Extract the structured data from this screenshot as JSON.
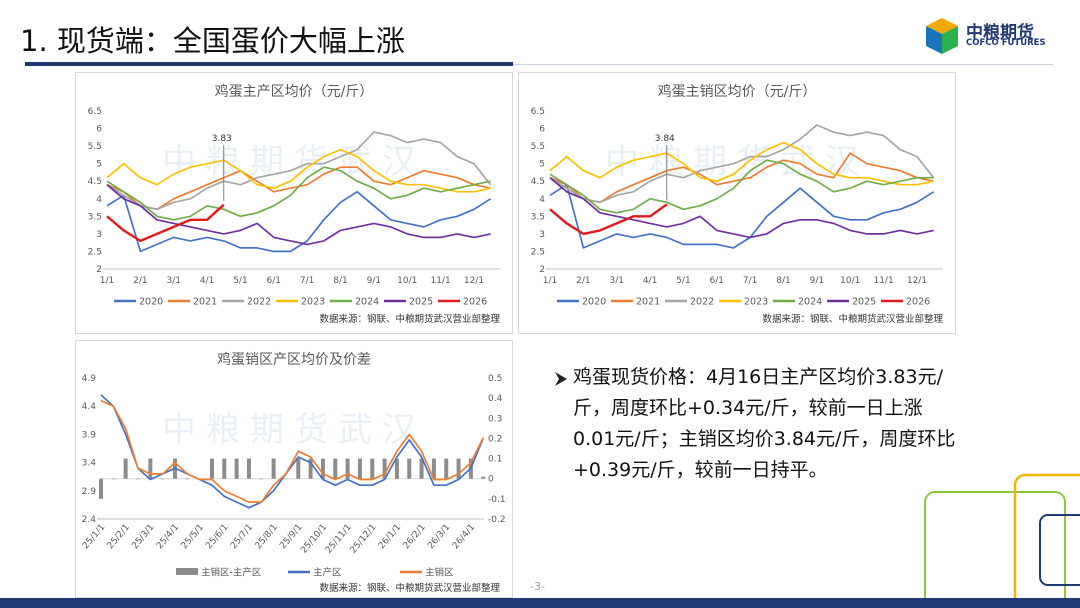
{
  "header": {
    "title": "1. 现货端：全国蛋价大幅上涨",
    "logo_cn": "中粮期货",
    "logo_en": "COFCO FUTURES"
  },
  "watermark": "中粮期货武汉",
  "body_text": "鸡蛋现货价格：4月16日主产区均价3.83元/斤，周度环比+0.34元/斤，较前一日上涨0.01元/斤；主销区均价3.84元/斤，周度环比+0.39元/斤，较前一日持平。",
  "page_number": "-3-",
  "chart_data": [
    {
      "type": "line",
      "title": "鸡蛋主产区均价（元/斤）",
      "source": "数据来源：钢联、中粮期货武汉营业部整理",
      "annotation": "3.83",
      "grid": false,
      "legend": "bottom",
      "categories": [
        "1/1",
        null,
        "2/1",
        null,
        "3/1",
        null,
        "4/1",
        null,
        "5/1",
        null,
        "6/1",
        null,
        "7/1",
        null,
        "8/1",
        null,
        "9/1",
        null,
        "10/1",
        null,
        "11/1",
        null,
        "12/1",
        null
      ],
      "ylim": [
        2,
        6.5
      ],
      "yticks": [
        2,
        2.5,
        3,
        3.5,
        4,
        4.5,
        5,
        5.5,
        6,
        6.5
      ],
      "series": [
        {
          "name": "2020",
          "color": "#4472c4",
          "values": [
            3.8,
            4.1,
            2.5,
            2.7,
            2.9,
            2.8,
            2.9,
            2.8,
            2.6,
            2.6,
            2.5,
            2.5,
            2.8,
            3.4,
            3.9,
            4.2,
            3.8,
            3.4,
            3.3,
            3.2,
            3.4,
            3.5,
            3.7,
            4.0
          ]
        },
        {
          "name": "2021",
          "color": "#ed7d31",
          "values": [
            4.4,
            4.2,
            3.8,
            3.7,
            4.0,
            4.2,
            4.4,
            4.6,
            4.8,
            4.5,
            4.2,
            4.3,
            4.4,
            4.7,
            4.9,
            4.9,
            4.5,
            4.4,
            4.6,
            4.8,
            4.7,
            4.6,
            4.4,
            4.3
          ]
        },
        {
          "name": "2022",
          "color": "#a5a5a5",
          "values": [
            4.4,
            4.1,
            3.8,
            3.7,
            3.9,
            4.0,
            4.3,
            4.5,
            4.4,
            4.6,
            4.7,
            4.8,
            5.0,
            5.0,
            5.2,
            5.4,
            5.9,
            5.8,
            5.6,
            5.7,
            5.6,
            5.2,
            5.0,
            4.4
          ]
        },
        {
          "name": "2023",
          "color": "#ffc000",
          "values": [
            4.6,
            5.0,
            4.6,
            4.4,
            4.7,
            4.9,
            5.0,
            5.1,
            4.8,
            4.4,
            4.3,
            4.5,
            4.9,
            5.2,
            5.4,
            5.2,
            4.8,
            4.5,
            4.4,
            4.4,
            4.3,
            4.2,
            4.2,
            4.3
          ]
        },
        {
          "name": "2024",
          "color": "#70ad47",
          "values": [
            4.5,
            4.2,
            3.9,
            3.5,
            3.4,
            3.5,
            3.8,
            3.7,
            3.5,
            3.6,
            3.8,
            4.1,
            4.6,
            4.9,
            4.8,
            4.5,
            4.3,
            4.0,
            4.1,
            4.3,
            4.2,
            4.3,
            4.4,
            4.5
          ]
        },
        {
          "name": "2025",
          "color": "#7030a0",
          "values": [
            4.4,
            4.0,
            3.8,
            3.4,
            3.3,
            3.2,
            3.1,
            3.0,
            3.1,
            3.3,
            2.9,
            2.8,
            2.7,
            2.8,
            3.1,
            3.2,
            3.3,
            3.2,
            3.0,
            2.9,
            2.9,
            3.0,
            2.9,
            3.0
          ]
        },
        {
          "name": "2026",
          "color": "#e31a1c",
          "values": [
            3.5,
            3.1,
            2.8,
            3.0,
            3.2,
            3.4,
            3.4,
            3.83,
            null,
            null,
            null,
            null,
            null,
            null,
            null,
            null,
            null,
            null,
            null,
            null,
            null,
            null,
            null,
            null
          ]
        }
      ]
    },
    {
      "type": "line",
      "title": "鸡蛋主销区均价（元/斤）",
      "source": "数据来源：钢联、中粮期货武汉营业部整理",
      "annotation": "3.84",
      "grid": false,
      "legend": "bottom",
      "categories": [
        "1/1",
        null,
        "2/1",
        null,
        "3/1",
        null,
        "4/1",
        null,
        "5/1",
        null,
        "6/1",
        null,
        "7/1",
        null,
        "8/1",
        null,
        "9/1",
        null,
        "10/1",
        null,
        "11/1",
        null,
        "12/1",
        null
      ],
      "ylim": [
        2,
        6.5
      ],
      "yticks": [
        2,
        2.5,
        3,
        3.5,
        4,
        4.5,
        5,
        5.5,
        6,
        6.5
      ],
      "series": [
        {
          "name": "2020",
          "color": "#4472c4",
          "values": [
            4.1,
            4.4,
            2.6,
            2.8,
            3.0,
            2.9,
            3.0,
            2.9,
            2.7,
            2.7,
            2.7,
            2.6,
            2.9,
            3.5,
            3.9,
            4.3,
            3.9,
            3.5,
            3.4,
            3.4,
            3.6,
            3.7,
            3.9,
            4.2
          ]
        },
        {
          "name": "2021",
          "color": "#ed7d31",
          "values": [
            4.6,
            4.4,
            4.0,
            3.9,
            4.2,
            4.4,
            4.6,
            4.8,
            4.9,
            4.7,
            4.4,
            4.5,
            4.6,
            4.9,
            5.1,
            5.0,
            4.7,
            4.6,
            5.3,
            5.0,
            4.9,
            4.8,
            4.6,
            4.5
          ]
        },
        {
          "name": "2022",
          "color": "#a5a5a5",
          "values": [
            4.6,
            4.3,
            4.0,
            3.9,
            4.1,
            4.2,
            4.5,
            4.7,
            4.6,
            4.8,
            4.9,
            5.0,
            5.2,
            5.2,
            5.4,
            5.7,
            6.1,
            5.9,
            5.8,
            5.9,
            5.8,
            5.4,
            5.2,
            4.6
          ]
        },
        {
          "name": "2023",
          "color": "#ffc000",
          "values": [
            4.8,
            5.2,
            4.8,
            4.6,
            4.9,
            5.1,
            5.2,
            5.3,
            5.0,
            4.6,
            4.5,
            4.7,
            5.1,
            5.4,
            5.6,
            5.4,
            5.0,
            4.7,
            4.6,
            4.6,
            4.5,
            4.4,
            4.4,
            4.5
          ]
        },
        {
          "name": "2024",
          "color": "#70ad47",
          "values": [
            4.7,
            4.4,
            4.1,
            3.7,
            3.6,
            3.7,
            4.0,
            3.9,
            3.7,
            3.8,
            4.0,
            4.3,
            4.8,
            5.1,
            5.0,
            4.7,
            4.5,
            4.2,
            4.3,
            4.5,
            4.4,
            4.5,
            4.6,
            4.6
          ]
        },
        {
          "name": "2025",
          "color": "#7030a0",
          "values": [
            4.6,
            4.2,
            4.0,
            3.6,
            3.5,
            3.4,
            3.3,
            3.2,
            3.3,
            3.5,
            3.1,
            3.0,
            2.9,
            3.0,
            3.3,
            3.4,
            3.4,
            3.3,
            3.1,
            3.0,
            3.0,
            3.1,
            3.0,
            3.1
          ]
        },
        {
          "name": "2026",
          "color": "#e31a1c",
          "values": [
            3.7,
            3.3,
            3.0,
            3.1,
            3.3,
            3.5,
            3.5,
            3.84,
            null,
            null,
            null,
            null,
            null,
            null,
            null,
            null,
            null,
            null,
            null,
            null,
            null,
            null,
            null,
            null
          ]
        }
      ]
    },
    {
      "type": "bar-line",
      "title": "鸡蛋销区产区均价及价差",
      "source": "数据来源：钢联、中粮期货武汉营业部整理",
      "grid": false,
      "legend": "bottom",
      "categories": [
        "25/1/1",
        null,
        "25/2/1",
        null,
        "25/3/1",
        null,
        "25/4/1",
        null,
        "25/5/1",
        null,
        "25/6/1",
        null,
        "25/7/1",
        null,
        "25/8/1",
        null,
        "25/9/1",
        null,
        "25/10/1",
        null,
        "25/11/1",
        null,
        "25/12/1",
        null,
        "26/1/1",
        null,
        "26/2/1",
        null,
        "26/3/1",
        null,
        "26/4/1",
        null
      ],
      "ylim": [
        2.4,
        4.9
      ],
      "yticks": [
        2.4,
        2.9,
        3.4,
        3.9,
        4.4,
        4.9
      ],
      "y2lim": [
        -0.2,
        0.5
      ],
      "y2ticks": [
        -0.2,
        -0.1,
        0,
        0.1,
        0.2,
        0.3,
        0.4,
        0.5
      ],
      "series": [
        {
          "name": "主销区-主产区",
          "type": "bar",
          "axis": "y2",
          "color": "#8c8c8c",
          "values": [
            -0.1,
            0.0,
            0.1,
            0.0,
            0.1,
            0.0,
            0.1,
            0.0,
            0.0,
            0.1,
            0.1,
            0.1,
            0.1,
            0.0,
            0.1,
            0.0,
            0.1,
            0.1,
            0.1,
            0.1,
            0.1,
            0.1,
            0.1,
            0.1,
            0.1,
            0.1,
            0.1,
            0.1,
            0.1,
            0.1,
            0.1,
            0.01
          ]
        },
        {
          "name": "主产区",
          "type": "line",
          "color": "#4472c4",
          "values": [
            4.6,
            4.4,
            3.9,
            3.3,
            3.1,
            3.2,
            3.3,
            3.2,
            3.1,
            3.0,
            2.8,
            2.7,
            2.6,
            2.7,
            2.9,
            3.2,
            3.5,
            3.4,
            3.1,
            3.0,
            3.1,
            3.0,
            3.0,
            3.1,
            3.5,
            3.8,
            3.5,
            3.0,
            3.0,
            3.1,
            3.3,
            3.83
          ]
        },
        {
          "name": "主销区",
          "type": "line",
          "color": "#ed7d31",
          "values": [
            4.5,
            4.4,
            4.0,
            3.3,
            3.2,
            3.2,
            3.4,
            3.2,
            3.1,
            3.1,
            2.9,
            2.8,
            2.7,
            2.7,
            3.0,
            3.2,
            3.6,
            3.5,
            3.2,
            3.1,
            3.2,
            3.1,
            3.1,
            3.2,
            3.6,
            3.9,
            3.6,
            3.1,
            3.1,
            3.2,
            3.4,
            3.84
          ]
        }
      ]
    }
  ]
}
